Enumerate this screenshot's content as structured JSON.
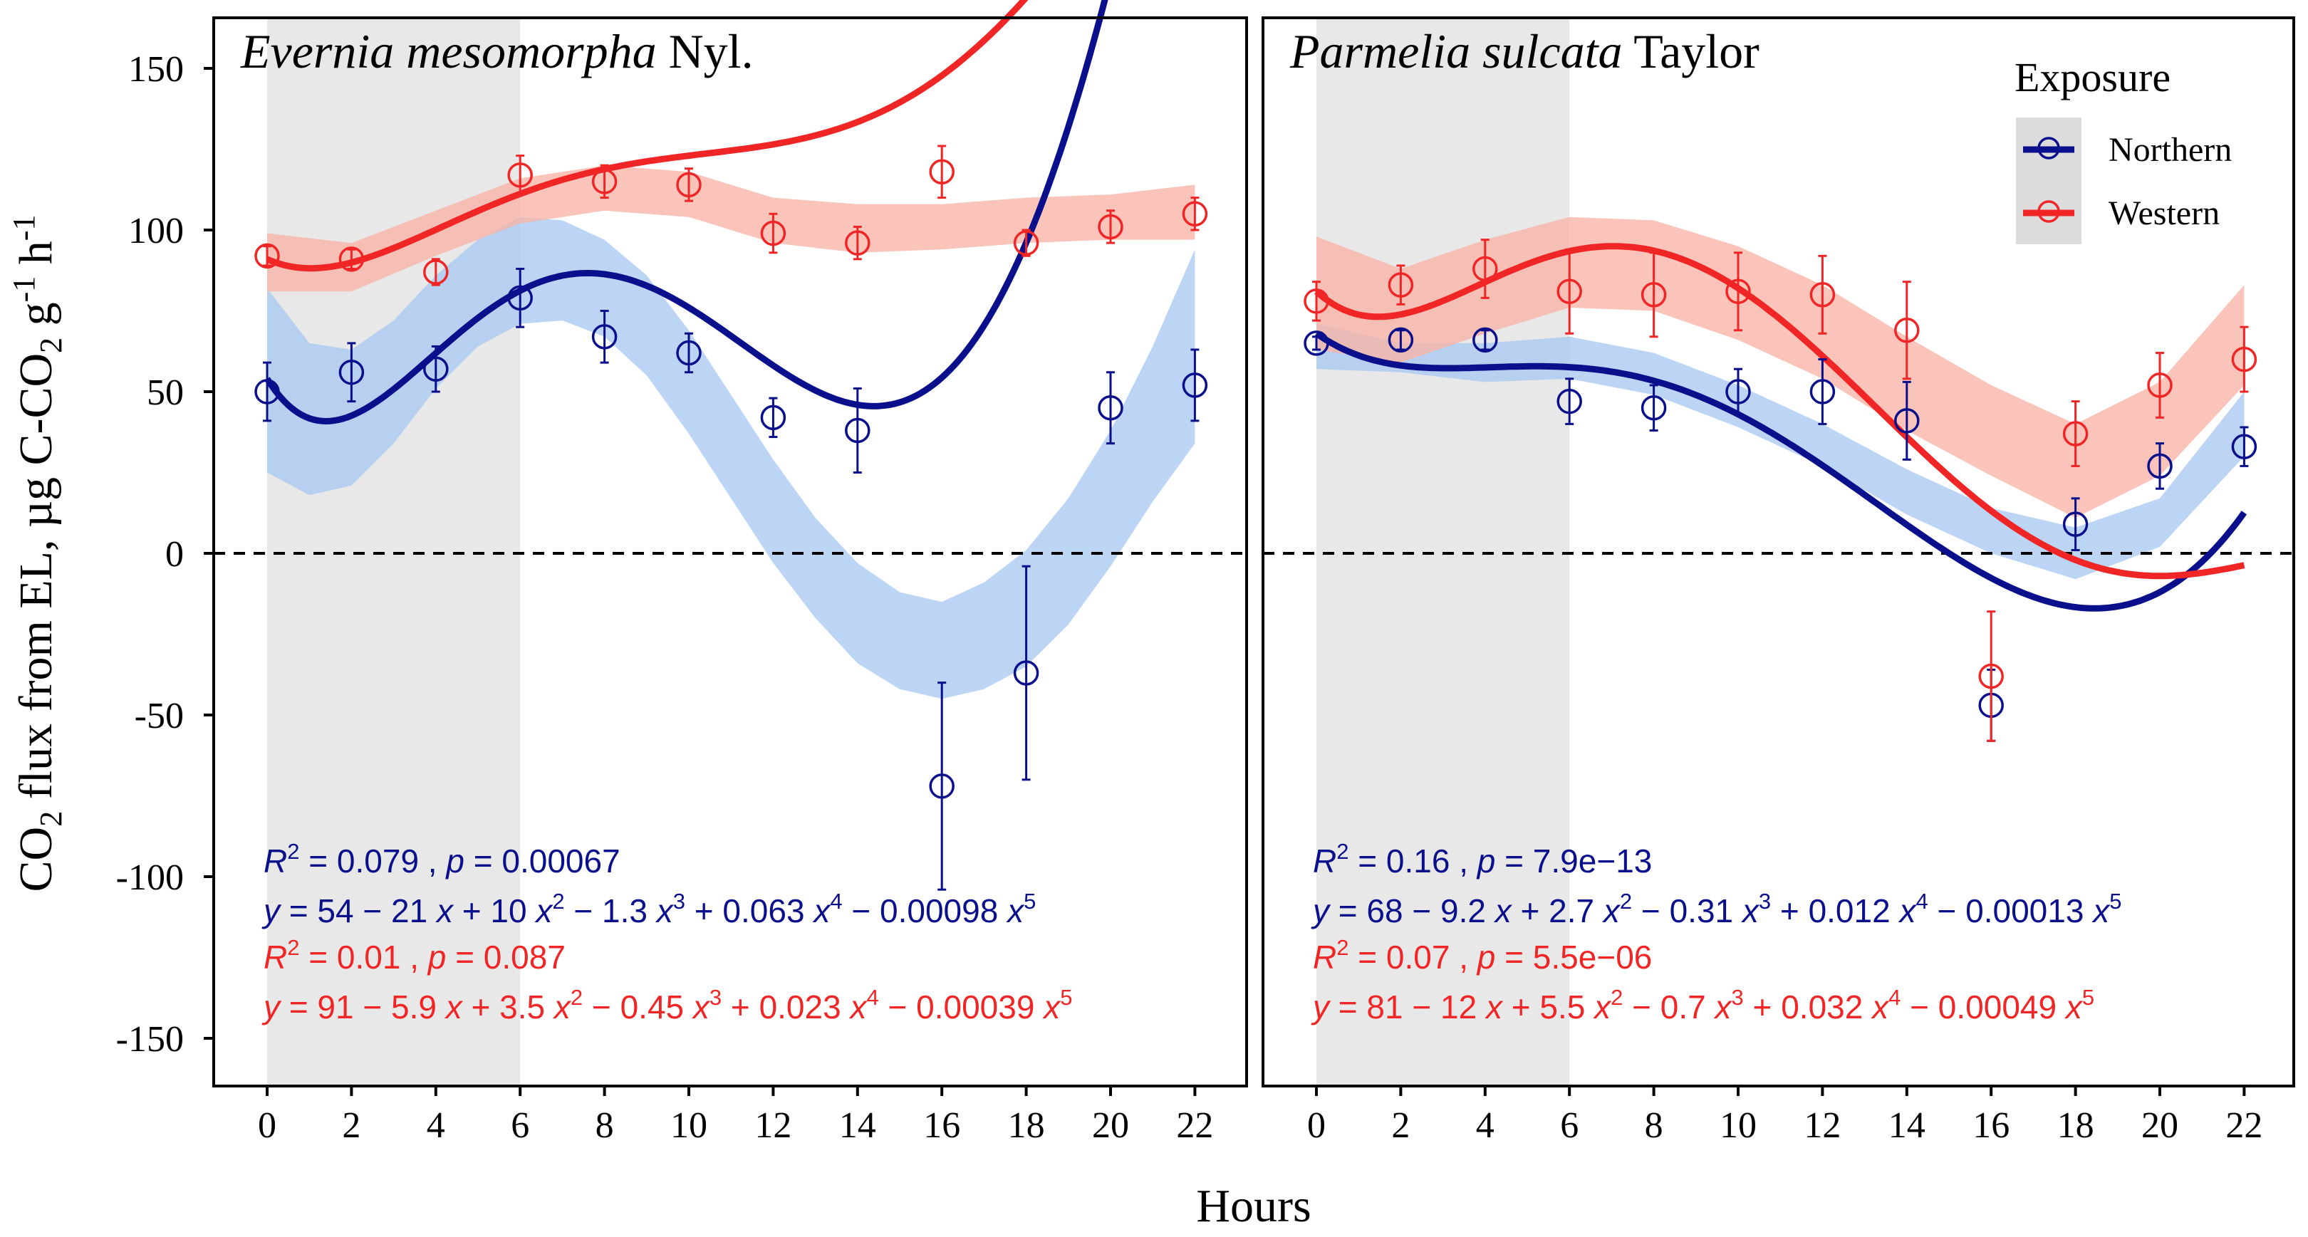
{
  "colors": {
    "northern": "#0a0f8c",
    "western": "#f02626",
    "northern_band": "#a9c9f2",
    "western_band": "#f9b3a6",
    "night": "#e8e8e8"
  },
  "figure": {
    "ylabel": "CO₂ flux from EL, µg C-CO₂ g⁻¹ h⁻¹",
    "ylabel_parts": [
      "CO",
      "2",
      " flux from EL, µg C-CO",
      "2",
      " g",
      "-1",
      " h",
      "-1"
    ],
    "xlabel": "Hours",
    "y_ticks": [
      "150",
      "100",
      "50",
      "0",
      "-50",
      "-100",
      "-150"
    ],
    "x_ticks": [
      "0",
      "2",
      "4",
      "6",
      "8",
      "10",
      "12",
      "14",
      "16",
      "18",
      "20",
      "22"
    ]
  },
  "legend": {
    "title": "Exposure",
    "items": [
      {
        "label": "Northern",
        "series": "northern"
      },
      {
        "label": "Western",
        "series": "western"
      }
    ]
  },
  "panels": [
    {
      "title_italic": "Evernia mesomorpha",
      "title_rest": " Nyl.",
      "annotations": [
        {
          "color": "northern",
          "parts": [
            [
              "i",
              "R"
            ],
            [
              "sup",
              "2"
            ],
            [
              "n",
              " = 0.079 , "
            ],
            [
              "i",
              "p"
            ],
            [
              "n",
              " = 0.00067"
            ]
          ]
        },
        {
          "color": "northern",
          "parts": [
            [
              "i",
              "y"
            ],
            [
              "n",
              " = 54 − 21 "
            ],
            [
              "i",
              "x"
            ],
            [
              "n",
              " + 10 "
            ],
            [
              "i",
              "x"
            ],
            [
              "sup",
              "2"
            ],
            [
              "n",
              " − 1.3 "
            ],
            [
              "i",
              "x"
            ],
            [
              "sup",
              "3"
            ],
            [
              "n",
              " + 0.063 "
            ],
            [
              "i",
              "x"
            ],
            [
              "sup",
              "4"
            ],
            [
              "n",
              " − 0.00098 "
            ],
            [
              "i",
              "x"
            ],
            [
              "sup",
              "5"
            ]
          ]
        },
        {
          "color": "western",
          "parts": [
            [
              "i",
              "R"
            ],
            [
              "sup",
              "2"
            ],
            [
              "n",
              " = 0.01 , "
            ],
            [
              "i",
              "p"
            ],
            [
              "n",
              " = 0.087"
            ]
          ]
        },
        {
          "color": "western",
          "parts": [
            [
              "i",
              "y"
            ],
            [
              "n",
              " = 91 − 5.9 "
            ],
            [
              "i",
              "x"
            ],
            [
              "n",
              " + 3.5 "
            ],
            [
              "i",
              "x"
            ],
            [
              "sup",
              "2"
            ],
            [
              "n",
              " − 0.45 "
            ],
            [
              "i",
              "x"
            ],
            [
              "sup",
              "3"
            ],
            [
              "n",
              " + 0.023 "
            ],
            [
              "i",
              "x"
            ],
            [
              "sup",
              "4"
            ],
            [
              "n",
              " − 0.00039 "
            ],
            [
              "i",
              "x"
            ],
            [
              "sup",
              "5"
            ]
          ]
        }
      ]
    },
    {
      "title_italic": "Parmelia sulcata",
      "title_rest": " Taylor",
      "annotations": [
        {
          "color": "northern",
          "parts": [
            [
              "i",
              "R"
            ],
            [
              "sup",
              "2"
            ],
            [
              "n",
              " = 0.16 , "
            ],
            [
              "i",
              "p"
            ],
            [
              "n",
              " = 7.9e−13"
            ]
          ]
        },
        {
          "color": "northern",
          "parts": [
            [
              "i",
              "y"
            ],
            [
              "n",
              " = 68 − 9.2 "
            ],
            [
              "i",
              "x"
            ],
            [
              "n",
              " + 2.7 "
            ],
            [
              "i",
              "x"
            ],
            [
              "sup",
              "2"
            ],
            [
              "n",
              " − 0.31 "
            ],
            [
              "i",
              "x"
            ],
            [
              "sup",
              "3"
            ],
            [
              "n",
              " + 0.012 "
            ],
            [
              "i",
              "x"
            ],
            [
              "sup",
              "4"
            ],
            [
              "n",
              " − 0.00013 "
            ],
            [
              "i",
              "x"
            ],
            [
              "sup",
              "5"
            ]
          ]
        },
        {
          "color": "western",
          "parts": [
            [
              "i",
              "R"
            ],
            [
              "sup",
              "2"
            ],
            [
              "n",
              " = 0.07 , "
            ],
            [
              "i",
              "p"
            ],
            [
              "n",
              " = 5.5e−06"
            ]
          ]
        },
        {
          "color": "western",
          "parts": [
            [
              "i",
              "y"
            ],
            [
              "n",
              " = 81 − 12 "
            ],
            [
              "i",
              "x"
            ],
            [
              "n",
              " + 5.5 "
            ],
            [
              "i",
              "x"
            ],
            [
              "sup",
              "2"
            ],
            [
              "n",
              " − 0.7 "
            ],
            [
              "i",
              "x"
            ],
            [
              "sup",
              "3"
            ],
            [
              "n",
              " + 0.032 "
            ],
            [
              "i",
              "x"
            ],
            [
              "sup",
              "4"
            ],
            [
              "n",
              " − 0.00049 "
            ],
            [
              "i",
              "x"
            ],
            [
              "sup",
              "5"
            ]
          ]
        }
      ]
    }
  ],
  "chart_data": [
    {
      "type": "scatter",
      "title": "Evernia mesomorpha Nyl.",
      "xlabel": "Hours",
      "ylabel": "CO₂ flux from EL, µg C-CO₂ g⁻¹ h⁻¹",
      "xlim": [
        -1.5,
        23.2
      ],
      "ylim": [
        -165,
        163
      ],
      "reference_line_y": 0,
      "night_shading_hours": [
        0,
        6
      ],
      "series": [
        {
          "name": "Northern",
          "color": "northern",
          "x": [
            0,
            2,
            4,
            6,
            8,
            10,
            12,
            14,
            16,
            18,
            20,
            22
          ],
          "y": [
            50,
            56,
            57,
            79,
            67,
            62,
            42,
            38,
            -72,
            -37,
            45,
            52
          ],
          "error": [
            9,
            9,
            7,
            9,
            8,
            6,
            6,
            13,
            32,
            33,
            11,
            11
          ],
          "fit": [
            54,
            -21,
            10,
            -1.3,
            0.063,
            -0.00098
          ],
          "fit_ci": [
            [
              0,
              25,
              82
            ],
            [
              1,
              18,
              65
            ],
            [
              2,
              21,
              63
            ],
            [
              3,
              34,
              72
            ],
            [
              4,
              51,
              86
            ],
            [
              5,
              64,
              97
            ],
            [
              6,
              71,
              104
            ],
            [
              7,
              72,
              103
            ],
            [
              8,
              67,
              97
            ],
            [
              9,
              55,
              86
            ],
            [
              10,
              37,
              69
            ],
            [
              11,
              17,
              49
            ],
            [
              12,
              -3,
              29
            ],
            [
              13,
              -20,
              11
            ],
            [
              14,
              -34,
              -3
            ],
            [
              15,
              -42,
              -12
            ],
            [
              16,
              -45,
              -15
            ],
            [
              17,
              -42,
              -9
            ],
            [
              18,
              -35,
              1
            ],
            [
              19,
              -22,
              17
            ],
            [
              20,
              -4,
              38
            ],
            [
              21,
              16,
              64
            ],
            [
              22,
              34,
              94
            ]
          ]
        },
        {
          "name": "Western",
          "color": "western",
          "x": [
            0,
            2,
            4,
            6,
            8,
            10,
            12,
            14,
            16,
            18,
            20,
            22
          ],
          "y": [
            92,
            91,
            87,
            117,
            115,
            114,
            99,
            96,
            118,
            96,
            101,
            105
          ],
          "error": [
            3,
            3,
            4,
            6,
            5,
            5,
            6,
            5,
            8,
            4,
            5,
            5
          ],
          "fit": [
            91,
            -5.9,
            3.5,
            -0.45,
            0.023,
            -0.00039
          ],
          "fit_ci": [
            [
              0,
              81,
              99
            ],
            [
              2,
              81,
              96
            ],
            [
              4,
              92,
              106
            ],
            [
              6,
              102,
              116
            ],
            [
              8,
              106,
              120
            ],
            [
              10,
              104,
              118
            ],
            [
              12,
              96,
              110
            ],
            [
              14,
              93,
              108
            ],
            [
              16,
              94,
              108
            ],
            [
              18,
              96,
              110
            ],
            [
              20,
              97,
              111
            ],
            [
              22,
              97,
              114
            ]
          ]
        }
      ]
    },
    {
      "type": "scatter",
      "title": "Parmelia sulcata Taylor",
      "xlabel": "Hours",
      "ylabel": "CO₂ flux from EL, µg C-CO₂ g⁻¹ h⁻¹",
      "xlim": [
        -1.5,
        23.2
      ],
      "ylim": [
        -165,
        163
      ],
      "reference_line_y": 0,
      "night_shading_hours": [
        0,
        6
      ],
      "series": [
        {
          "name": "Northern",
          "color": "northern",
          "x": [
            0,
            2,
            4,
            6,
            8,
            10,
            12,
            14,
            16,
            18,
            20,
            22
          ],
          "y": [
            65,
            66,
            66,
            47,
            45,
            50,
            50,
            41,
            -47,
            9,
            27,
            33
          ],
          "error": [
            2,
            3,
            3,
            7,
            7,
            7,
            10,
            12,
            11,
            8,
            7,
            6
          ],
          "fit": [
            68,
            -9.2,
            2.7,
            -0.31,
            0.012,
            -0.00013
          ],
          "fit_ci": [
            [
              0,
              57,
              71
            ],
            [
              2,
              56,
              65
            ],
            [
              4,
              53,
              65
            ],
            [
              6,
              54,
              67
            ],
            [
              8,
              49,
              62
            ],
            [
              10,
              39,
              52
            ],
            [
              12,
              27,
              40
            ],
            [
              14,
              12,
              26
            ],
            [
              16,
              0,
              14
            ],
            [
              18,
              -8,
              8
            ],
            [
              20,
              2,
              17
            ],
            [
              22,
              30,
              50
            ]
          ]
        },
        {
          "name": "Western",
          "color": "western",
          "x": [
            0,
            2,
            4,
            6,
            8,
            10,
            12,
            14,
            16,
            18,
            20,
            22
          ],
          "y": [
            78,
            83,
            88,
            81,
            80,
            81,
            80,
            69,
            -38,
            37,
            52,
            60
          ],
          "error": [
            6,
            6,
            9,
            13,
            13,
            12,
            12,
            15,
            20,
            10,
            10,
            10
          ],
          "fit": [
            81,
            -12,
            5.5,
            -0.7,
            0.032,
            -0.00049
          ],
          "fit_ci": [
            [
              0,
              63,
              98
            ],
            [
              2,
              59,
              88
            ],
            [
              4,
              68,
              97
            ],
            [
              6,
              76,
              104
            ],
            [
              8,
              75,
              103
            ],
            [
              10,
              66,
              95
            ],
            [
              12,
              54,
              83
            ],
            [
              14,
              38,
              67
            ],
            [
              16,
              24,
              52
            ],
            [
              18,
              11,
              40
            ],
            [
              20,
              24,
              53
            ],
            [
              22,
              52,
              83
            ]
          ]
        }
      ]
    }
  ]
}
